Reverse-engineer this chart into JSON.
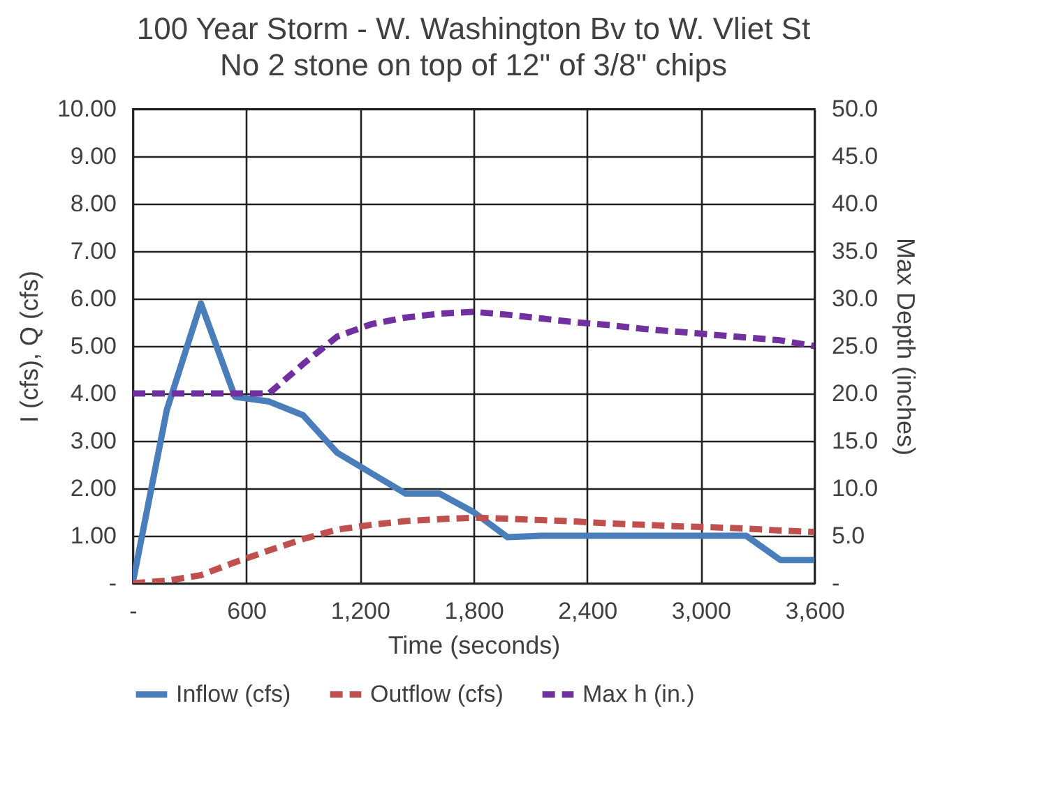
{
  "chart_data": {
    "type": "line",
    "title": "100 Year Storm - W. Washington Bv to W. Vliet St",
    "subtitle": "No 2 stone on top of 12\" of 3/8\" chips",
    "xlabel": "Time (seconds)",
    "ylabel": "I (cfs), Q (cfs)",
    "y2label": "Max Depth (inches)",
    "x": [
      0,
      180,
      360,
      540,
      720,
      900,
      1080,
      1260,
      1440,
      1620,
      1800,
      1980,
      2160,
      2340,
      2520,
      2700,
      2880,
      3060,
      3240,
      3420,
      3600
    ],
    "series": [
      {
        "name": "Inflow (cfs)",
        "color": "#4a7ebb",
        "line_style": "solid",
        "values": [
          0,
          3.65,
          5.9,
          3.93,
          3.83,
          3.54,
          2.75,
          2.32,
          1.89,
          1.89,
          1.5,
          0.97,
          1.0,
          1.0,
          1.0,
          1.0,
          1.0,
          1.0,
          1.0,
          0.49,
          0.49
        ]
      },
      {
        "name": "Outflow (cfs)",
        "color": "#c0504d",
        "line_style": "dashed",
        "values": [
          0,
          0.05,
          0.17,
          0.44,
          0.69,
          0.93,
          1.13,
          1.23,
          1.31,
          1.35,
          1.38,
          1.36,
          1.33,
          1.3,
          1.26,
          1.23,
          1.2,
          1.18,
          1.15,
          1.11,
          1.08
        ]
      },
      {
        "name": "Max h (in.)",
        "color": "#7030a0",
        "line_style": "dashed",
        "axis": "y2",
        "values": [
          20.0,
          20.0,
          20.0,
          20.0,
          20.0,
          23.1,
          26.0,
          27.3,
          28.0,
          28.4,
          28.6,
          28.3,
          27.9,
          27.5,
          27.2,
          26.8,
          26.5,
          26.2,
          25.9,
          25.6,
          25.0
        ]
      }
    ],
    "xlim": [
      0,
      3600
    ],
    "xticks": [
      {
        "value": 0,
        "label": "-"
      },
      600,
      {
        "value": 1200,
        "label": "1,200"
      },
      {
        "value": 1800,
        "label": "1,800"
      },
      {
        "value": 2400,
        "label": "2,400"
      },
      {
        "value": 3000,
        "label": "3,000"
      },
      {
        "value": 3600,
        "label": "3,600"
      }
    ],
    "ylim": [
      0,
      10
    ],
    "yticks": [
      {
        "value": 0,
        "label": "-"
      },
      {
        "value": 1,
        "label": "1.00"
      },
      {
        "value": 2,
        "label": "2.00"
      },
      {
        "value": 3,
        "label": "3.00"
      },
      {
        "value": 4,
        "label": "4.00"
      },
      {
        "value": 5,
        "label": "5.00"
      },
      {
        "value": 6,
        "label": "6.00"
      },
      {
        "value": 7,
        "label": "7.00"
      },
      {
        "value": 8,
        "label": "8.00"
      },
      {
        "value": 9,
        "label": "9.00"
      },
      {
        "value": 10,
        "label": "10.00"
      }
    ],
    "y2lim": [
      0,
      50
    ],
    "y2ticks": [
      {
        "value": 0,
        "label": "-"
      },
      {
        "value": 5,
        "label": "5.0"
      },
      {
        "value": 10,
        "label": "10.0"
      },
      {
        "value": 15,
        "label": "15.0"
      },
      {
        "value": 20,
        "label": "20.0"
      },
      {
        "value": 25,
        "label": "25.0"
      },
      {
        "value": 30,
        "label": "30.0"
      },
      {
        "value": 35,
        "label": "35.0"
      },
      {
        "value": 40,
        "label": "40.0"
      },
      {
        "value": 45,
        "label": "45.0"
      },
      {
        "value": 50,
        "label": "50.0"
      }
    ],
    "grid": true,
    "legend": "bottom",
    "marker": "none"
  }
}
